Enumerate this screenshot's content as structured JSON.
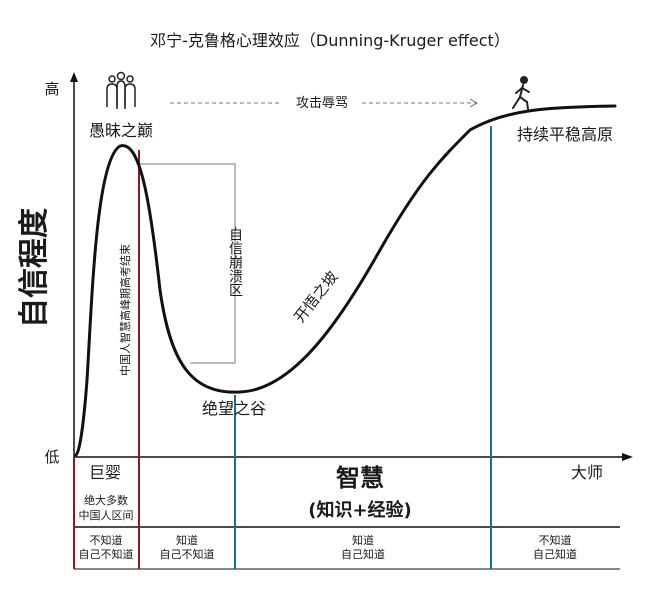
{
  "title": "邓宁-克鲁格心理效应（Dunning-Kruger effect）",
  "y_axis": {
    "label": "自信程度",
    "high": "高",
    "low": "低"
  },
  "x_axis": {
    "main_label": "智慧",
    "sub_label": "(知识+经验)",
    "end_label": "大师"
  },
  "annotations": {
    "peak": "愚昧之巅",
    "arrow_text": "攻击辱骂",
    "plateau": "持续平稳高原",
    "collapse": "自信崩溃区",
    "slope": "开悟之坡",
    "valley": "绝望之谷",
    "vertical_note": "中国人智慧高峰期高考结束",
    "infant": "巨婴"
  },
  "bottom_rows": {
    "majority_line1": "绝大多数",
    "majority_line2": "中国人区间",
    "stages": [
      {
        "line1": "不知道",
        "line2": "自己不知道"
      },
      {
        "line1": "知道",
        "line2": "自己不知道"
      },
      {
        "line1": "知道",
        "line2": "自己知道"
      },
      {
        "line1": "不知道",
        "line2": "自己知道"
      }
    ]
  },
  "icons": {
    "group": "people-group-icon",
    "walker": "walking-person-icon"
  },
  "colors": {
    "dark_red": "#8b1a1a",
    "teal": "#1f6b8a",
    "black": "#111111",
    "gray": "#777777"
  }
}
